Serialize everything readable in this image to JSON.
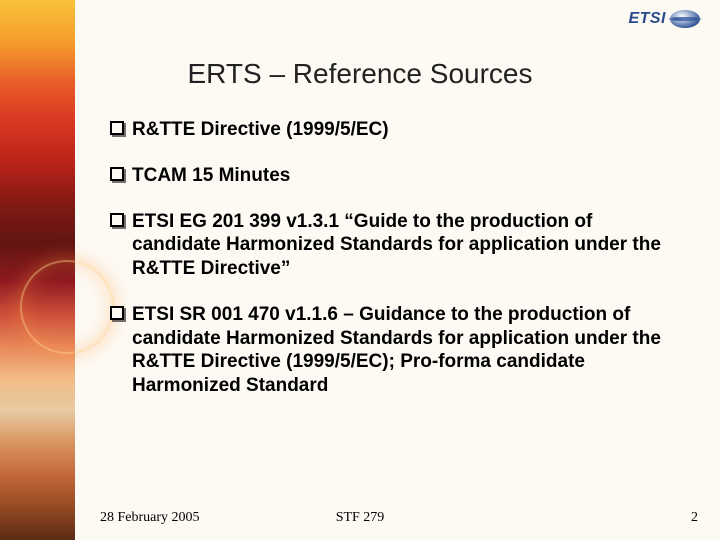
{
  "logo": {
    "text": "ETSI"
  },
  "title": "ERTS – Reference Sources",
  "bullets": [
    "R&TTE Directive (1999/5/EC)",
    "TCAM 15 Minutes",
    "ETSI EG 201 399 v1.3.1 “Guide to the production of candidate Harmonized Standards for application under the R&TTE Directive”",
    "ETSI SR 001 470 v1.1.6 – Guidance to the production of candidate Harmonized Standards for application under the R&TTE Directive (1999/5/EC); Pro-forma candidate Harmonized Standard"
  ],
  "footer": {
    "date": "28 February 2005",
    "center": "STF 279",
    "page": "2"
  },
  "colors": {
    "background": "#fdfaf4",
    "text": "#000000",
    "logo_text": "#2a4a8a"
  },
  "typography": {
    "title_fontsize_pt": 21,
    "bullet_fontsize_pt": 14,
    "bullet_weight": "bold",
    "footer_fontsize_pt": 11,
    "footer_family": "Times New Roman"
  }
}
